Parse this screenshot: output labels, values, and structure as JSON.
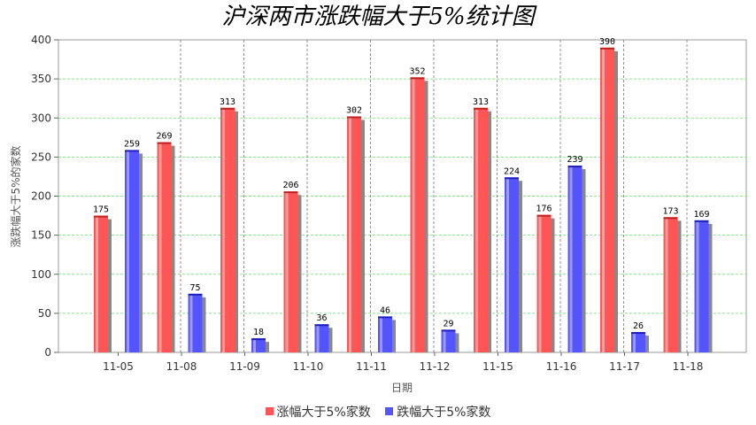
{
  "chart_data": {
    "type": "bar",
    "title": "沪深两市涨跌幅大于5%统计图",
    "xlabel": "日期",
    "ylabel": "涨跌幅大于5%的家数",
    "categories": [
      "11-05",
      "11-08",
      "11-09",
      "11-10",
      "11-11",
      "11-12",
      "11-15",
      "11-16",
      "11-17",
      "11-18"
    ],
    "series": [
      {
        "name": "涨幅大于5%家数",
        "color": "#ff5555",
        "values": [
          175,
          269,
          313,
          206,
          302,
          352,
          313,
          176,
          390,
          173
        ]
      },
      {
        "name": "跌幅大于5%家数",
        "color": "#5555ff",
        "values": [
          259,
          75,
          18,
          36,
          46,
          29,
          224,
          239,
          26,
          169
        ]
      }
    ],
    "ylim": [
      0,
      400
    ],
    "yticks": [
      0,
      50,
      100,
      150,
      200,
      250,
      300,
      350,
      400
    ],
    "grid": true,
    "legend_position": "bottom"
  }
}
